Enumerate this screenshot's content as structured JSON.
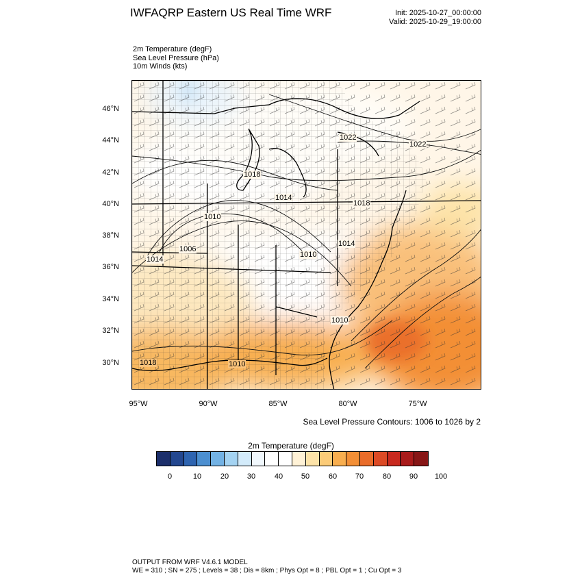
{
  "header": {
    "title": "IWFAQRP Eastern US Real Time WRF",
    "init": "Init: 2025-10-27_00:00:00",
    "valid": "Valid: 2025-10-29_19:00:00"
  },
  "fields": {
    "temperature": "2m Temperature   (degF)",
    "pressure": "Sea Level Pressure   (hPa)",
    "winds": "10m Winds   (kts)"
  },
  "axes": {
    "lat_labels": [
      "46°N",
      "44°N",
      "42°N",
      "40°N",
      "38°N",
      "36°N",
      "34°N",
      "32°N",
      "30°N"
    ],
    "lon_labels": [
      "95°W",
      "90°W",
      "85°W",
      "80°W",
      "75°W"
    ]
  },
  "isobar_labels": [
    "1022",
    "1022",
    "1018",
    "1014",
    "1018",
    "1010",
    "1006",
    "1014",
    "1010",
    "1014",
    "1010",
    "1018",
    "1010"
  ],
  "contour_note": "Sea Level Pressure Contours: 1006 to 1026 by 2",
  "colorbar": {
    "title": "2m Temperature  (degF)",
    "colors": [
      "#1c2f6b",
      "#23478f",
      "#2e64b0",
      "#4c8fd0",
      "#73b2e4",
      "#a4d3f2",
      "#d3ebfa",
      "#f1f8fd",
      "#ffffff",
      "#ffffff",
      "#fff2d6",
      "#fde3a8",
      "#fbcb78",
      "#f8ae4f",
      "#f38f36",
      "#e96c2a",
      "#dc4a25",
      "#c8291f",
      "#a91b1b",
      "#871616"
    ],
    "tick_labels": [
      "0",
      "10",
      "20",
      "30",
      "40",
      "50",
      "60",
      "70",
      "80",
      "90",
      "100"
    ]
  },
  "footer": {
    "line1": "OUTPUT FROM WRF V4.6.1 MODEL",
    "line2": "WE = 310 ; SN = 275 ; Levels = 38 ; Dis = 8km ; Phys Opt = 8 ; PBL Opt = 1 ; Cu Opt = 3"
  }
}
